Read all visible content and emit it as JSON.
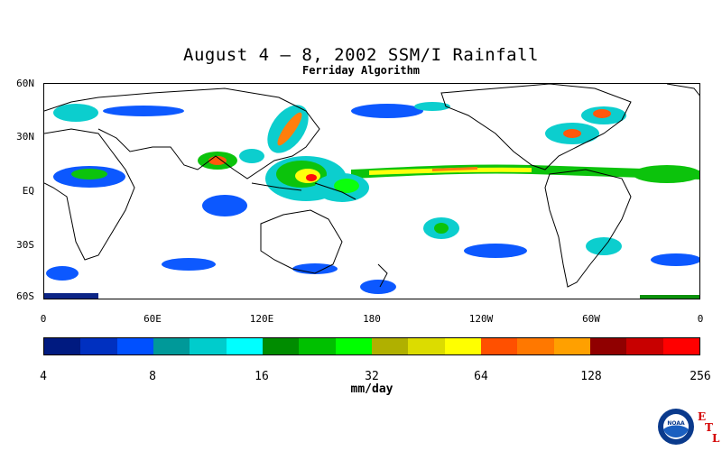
{
  "title": "August 4 – 8, 2002 SSM/I Rainfall",
  "subtitle": "Ferriday Algorithm",
  "map": {
    "lat_labels": [
      "60N",
      "30N",
      "EQ",
      "30S",
      "60S"
    ],
    "lon_labels": [
      "0",
      "60E",
      "120E",
      "180",
      "120W",
      "60W",
      "0"
    ]
  },
  "colorbar": {
    "colors": [
      "#001a80",
      "#0030c0",
      "#0050ff",
      "#009999",
      "#00cccc",
      "#00ffff",
      "#008c00",
      "#00c000",
      "#00ff00",
      "#b0b000",
      "#dcdc00",
      "#ffff00",
      "#ff5000",
      "#ff7800",
      "#ffa000",
      "#900000",
      "#c80000",
      "#ff0000"
    ],
    "tick_labels": [
      "4",
      "8",
      "16",
      "32",
      "64",
      "128",
      "256"
    ],
    "units": "mm/day"
  },
  "logo": {
    "noaa_text": "NOAA",
    "etl_letters": [
      "E",
      "T",
      "L"
    ]
  }
}
